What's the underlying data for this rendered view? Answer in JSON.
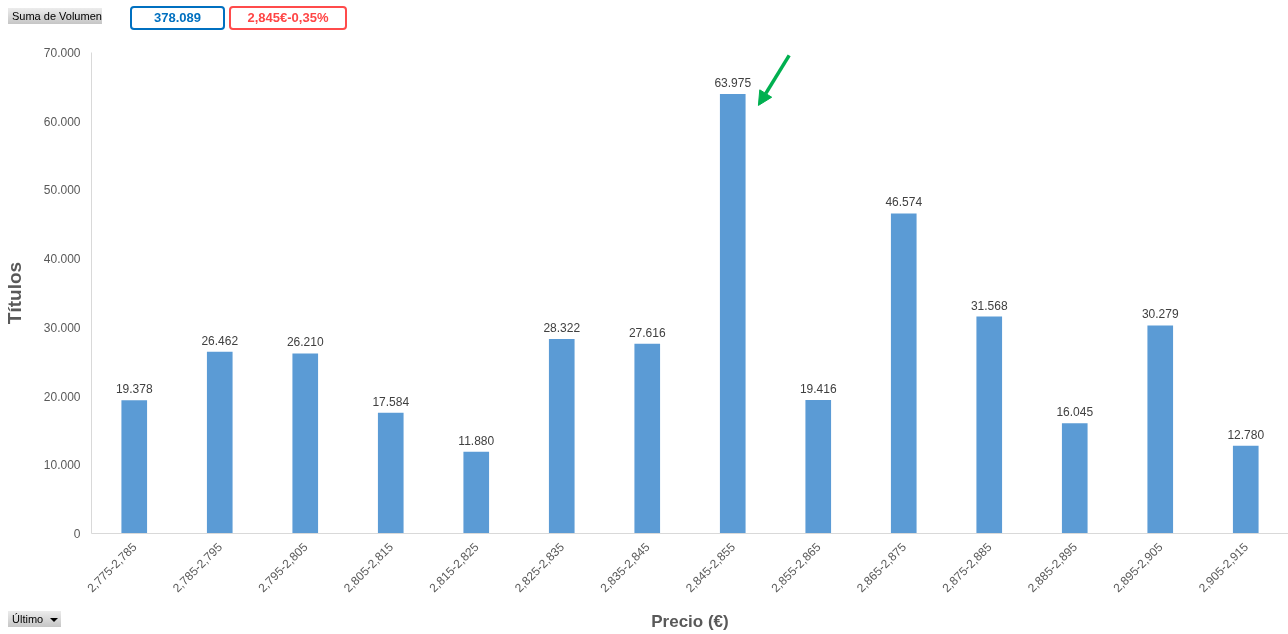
{
  "chart_data": {
    "type": "bar",
    "categories": [
      "2,775-2,785",
      "2,785-2,795",
      "2,795-2,805",
      "2,805-2,815",
      "2,815-2,825",
      "2,825-2,835",
      "2,835-2,845",
      "2,845-2,855",
      "2,855-2,865",
      "2,865-2,875",
      "2,875-2,885",
      "2,885-2,895",
      "2,895-2,905",
      "2,905-2,915"
    ],
    "values": [
      19378,
      26462,
      26210,
      17584,
      11880,
      28322,
      27616,
      63975,
      19416,
      46574,
      31568,
      16045,
      30279,
      12780
    ],
    "value_labels": [
      "19.378",
      "26.462",
      "26.210",
      "17.584",
      "11.880",
      "28.322",
      "27.616",
      "63.975",
      "19.416",
      "46.574",
      "31.568",
      "16.045",
      "30.279",
      "12.780"
    ],
    "color": "#5b9bd5",
    "xlabel": "Precio (€)",
    "ylabel": "Títulos",
    "ylim": [
      0,
      70000
    ],
    "yticks": [
      0,
      {
        "value": 10000,
        "label": "10.000"
      },
      {
        "value": 20000,
        "label": "20.000"
      },
      {
        "value": 30000,
        "label": "30.000"
      },
      {
        "value": 40000,
        "label": "40.000"
      },
      {
        "value": 50000,
        "label": "50.000"
      },
      {
        "value": 60000,
        "label": "60.000"
      },
      {
        "value": 70000,
        "label": "70.000"
      }
    ],
    "grid": false,
    "annotations": [
      "Suma de Volumen",
      "378.089",
      "2,845€",
      "-0,35%",
      "Último"
    ]
  }
}
